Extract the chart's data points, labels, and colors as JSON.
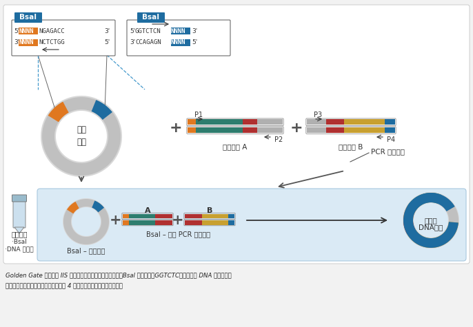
{
  "bg_color": "#f2f2f2",
  "box_bg": "#ffffff",
  "panel_bg": "#daeaf5",
  "bsal_box_color": "#1e6ca0",
  "orange_color": "#e07820",
  "blue_color": "#1e6ca0",
  "teal_color": "#2e7d6e",
  "red_color": "#b03030",
  "gold_color": "#c8a030",
  "gray_color": "#b0b0b0",
  "dashed_line_color": "#4499cc",
  "caption_line1": "Golden Gate 组装需要 IIS 型内切酶识别位点。如图例所示，Bsal 识别序列（GGTCTC）加在双链 DNA 片段末端。",
  "caption_line2": "然后在识别序列外酶切，每个片段产生 4 碱基突出末端，直接用于组装。",
  "labels": {
    "vector": "目标\n载体",
    "insert_a": "插入片段 A",
    "insert_b": "插入片段 B",
    "pcr": "PCR 扩增片段",
    "single_tube": "单管反应",
    "bsal_bullet": "·Bsal",
    "ligase_bullet": "·DNA 连接酶",
    "bsal_cut_vector": "BsaI – 酶切载体",
    "bsal_cut_pcr": "BsaI – 酶切 PCR 扩增片段",
    "assembled_line1": "组装的",
    "assembled_line2": "DNA产物",
    "A": "A",
    "B": "B",
    "P1": "P1",
    "P2": "P2",
    "P3": "P3",
    "P4": "P4"
  }
}
